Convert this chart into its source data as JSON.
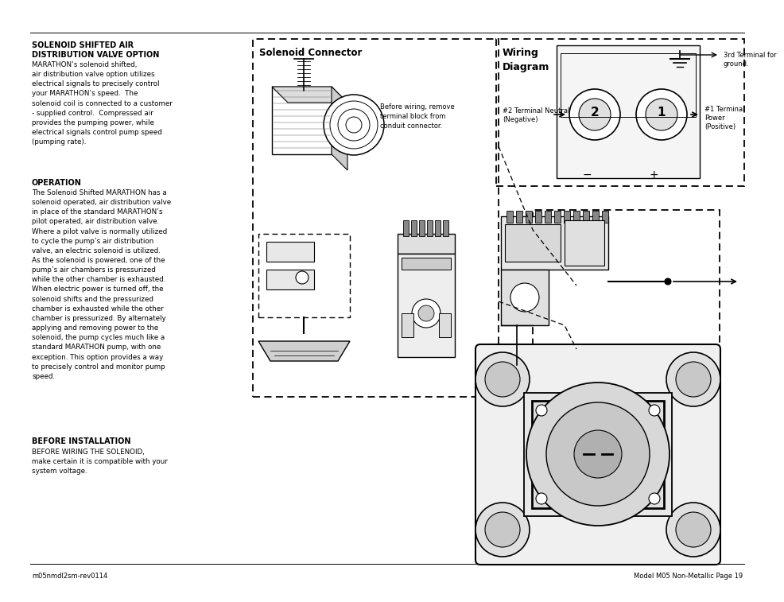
{
  "page_bg": "#ffffff",
  "text_color": "#000000",
  "footer_left": "m05nmdl2sm-rev0114",
  "footer_right": "Model M05 Non-Metallic Page 19",
  "section1_title1": "SOLENOID SHIFTED AIR",
  "section1_title2": "DISTRIBUTION VALVE OPTION",
  "section1_body": "MARATHON’s solenoid shifted,\nair distribution valve option utilizes\nelectrical signals to precisely control\nyour MARATHON’s speed.  The\nsolenoid coil is connected to a customer\n- supplied control.  Compressed air\nprovides the pumping power, while\nelectrical signals control pump speed\n(pumping rate).",
  "section2_title": "OPERATION",
  "section2_body": "The Solenoid Shifted MARATHON has a\nsolenoid operated, air distribution valve\nin place of the standard MARATHON’s\npilot operated, air distribution valve.\nWhere a pilot valve is normally utilized\nto cycle the pump’s air distribution\nvalve, an electric solenoid is utilized.\nAs the solenoid is powered, one of the\npump’s air chambers is pressurized\nwhile the other chamber is exhausted.\nWhen electric power is turned off, the\nsolenoid shifts and the pressurized\nchamber is exhausted while the other\nchamber is pressurized. By alternately\napplying and removing power to the\nsolenoid, the pump cycles much like a\nstandard MARATHON pump, with one\nexception. This option provides a way\nto precisely control and monitor pump\nspeed.",
  "section3_title": "BEFORE INSTALLATION",
  "section3_body": "BEFORE WIRING THE SOLENOID,\nmake certain it is compatible with your\nsystem voltage.",
  "solenoid_label": "Solenoid Connector",
  "wiring_label1": "Wiring",
  "wiring_label2": "Diagram",
  "note_text": "Before wiring, remove\nterminal block from\nconduit connector.",
  "t2_label": "#2 Terminal Neutral\n(Negative)",
  "t1_label": "#1 Terminal\nPower\n(Positive)",
  "t3_label": "3rd Terminal for\nground.",
  "minus_sym": "−",
  "plus_sym": "+"
}
